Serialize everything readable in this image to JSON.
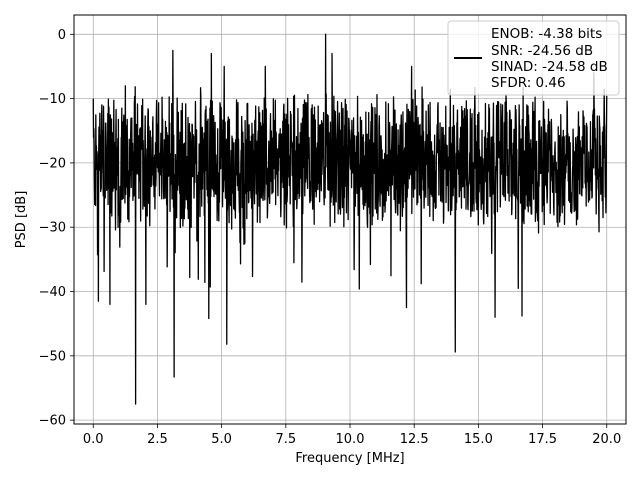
{
  "chart_data": {
    "type": "line",
    "title": "",
    "xlabel": "Frequency [MHz]",
    "ylabel": "PSD [dB]",
    "xlim": [
      -0.75,
      20.75
    ],
    "ylim": [
      -60.6,
      3
    ],
    "x_ticks": [
      0.0,
      2.5,
      5.0,
      7.5,
      10.0,
      12.5,
      15.0,
      17.5,
      20.0
    ],
    "x_tick_labels": [
      "0.0",
      "2.5",
      "5.0",
      "7.5",
      "10.0",
      "12.5",
      "15.0",
      "17.5",
      "20.0"
    ],
    "y_ticks": [
      0,
      -10,
      -20,
      -30,
      -40,
      -50,
      -60
    ],
    "y_tick_labels": [
      "0",
      "−10",
      "−20",
      "−30",
      "−40",
      "−50",
      "−60"
    ],
    "grid": true,
    "legend_position": "top-right",
    "series": [
      {
        "name": "ENOB: -4.38 bits\nSNR: -24.56 dB\nSINAD: -24.58 dB\nSFDR: 0.46",
        "color": "#000000",
        "x_range": [
          0,
          20
        ],
        "approx_envelope": {
          "typical_top": -12,
          "typical_bottom": -30,
          "center": -20
        },
        "peaks": [
          {
            "x": 0.0,
            "y": -10
          },
          {
            "x": 1.25,
            "y": -8
          },
          {
            "x": 1.65,
            "y": -4
          },
          {
            "x": 3.1,
            "y": -2.5
          },
          {
            "x": 4.6,
            "y": -3
          },
          {
            "x": 5.1,
            "y": -5
          },
          {
            "x": 6.7,
            "y": -5
          },
          {
            "x": 9.05,
            "y": 0
          },
          {
            "x": 9.3,
            "y": -3
          },
          {
            "x": 12.4,
            "y": -5
          },
          {
            "x": 19.5,
            "y": -6
          }
        ],
        "troughs": [
          {
            "x": 0.2,
            "y": -41.5
          },
          {
            "x": 0.65,
            "y": -42
          },
          {
            "x": 1.65,
            "y": -57.5
          },
          {
            "x": 2.05,
            "y": -42
          },
          {
            "x": 3.15,
            "y": -53.3
          },
          {
            "x": 4.5,
            "y": -44.2
          },
          {
            "x": 5.2,
            "y": -48.2
          },
          {
            "x": 12.2,
            "y": -42.5
          },
          {
            "x": 14.1,
            "y": -49.4
          },
          {
            "x": 15.65,
            "y": -44
          },
          {
            "x": 16.7,
            "y": -43.8
          }
        ]
      }
    ]
  },
  "legend": {
    "lines": [
      "ENOB: -4.38 bits",
      "SNR: -24.56 dB",
      "SINAD: -24.58 dB",
      "SFDR: 0.46"
    ]
  }
}
